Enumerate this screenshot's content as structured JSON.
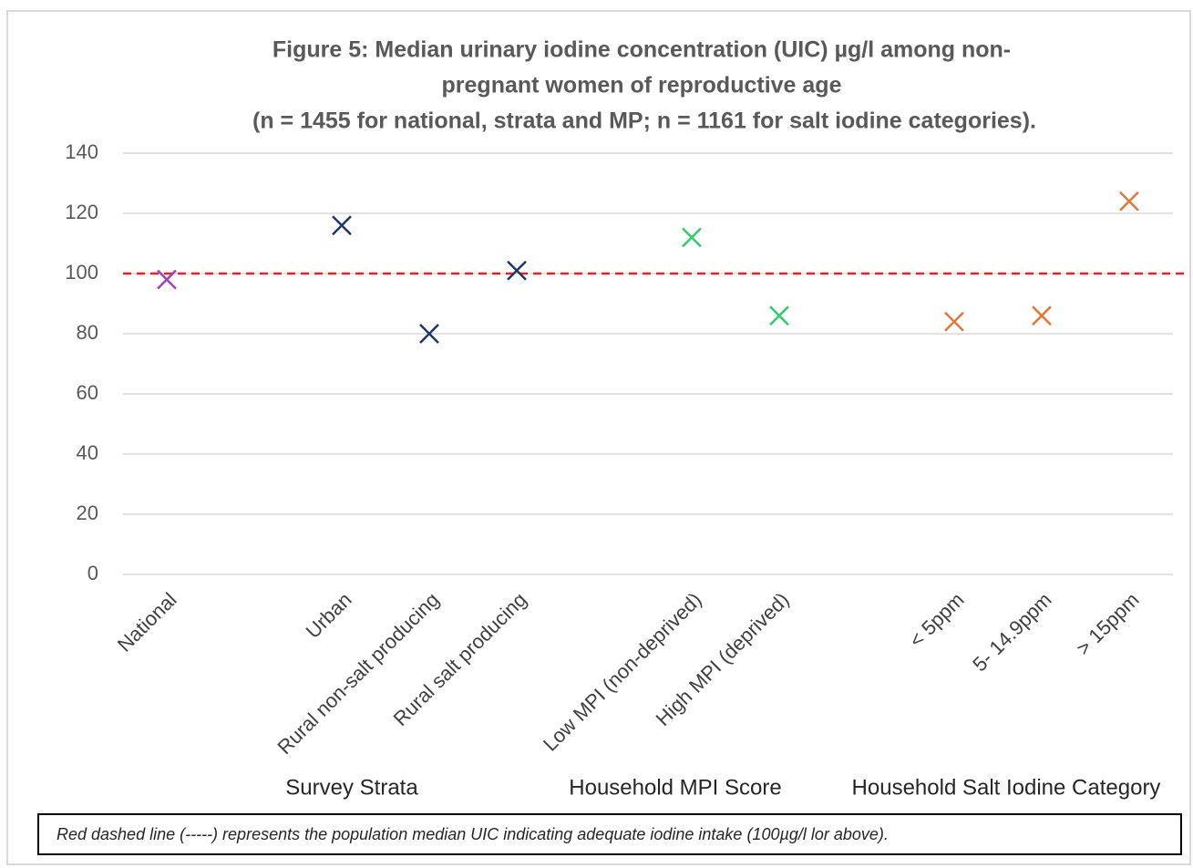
{
  "chart_data": {
    "type": "scatter",
    "title": [
      "Figure 5: Median urinary iodine concentration (UIC) µg/l among non-",
      "pregnant women of reproductive age"
    ],
    "subtitle": "(n = 1455 for national, strata and MP; n = 1161 for salt iodine categories).",
    "categories": [
      "National",
      null,
      "Urban",
      "Rural non-salt producing",
      "Rural salt producing",
      null,
      "Low MPI (non-deprived)",
      "High MPI (deprived)",
      null,
      "< 5ppm",
      "5- 14.9ppm",
      "> 15ppm"
    ],
    "values": [
      98,
      null,
      116,
      80,
      101,
      null,
      112,
      86,
      null,
      84,
      86,
      124
    ],
    "colors": [
      "#a23fc2",
      null,
      "#203864",
      "#203864",
      "#203864",
      null,
      "#2fcc6a",
      "#2fcc6a",
      null,
      "#e0783a",
      "#e0783a",
      "#e0783a"
    ],
    "groups": [
      "Survey Strata",
      "Household MPI Score",
      "Household Salt Iodine Category"
    ],
    "ylim": [
      0,
      140
    ],
    "yticks": [
      0,
      20,
      40,
      60,
      80,
      100,
      120,
      140
    ],
    "grid": true,
    "reference_line": {
      "value": 100,
      "color": "#e8202a",
      "dashed": true
    },
    "footnote": "Red dashed line (-----) represents the population median UIC indicating adequate iodine intake (100µg/l lor above)."
  }
}
